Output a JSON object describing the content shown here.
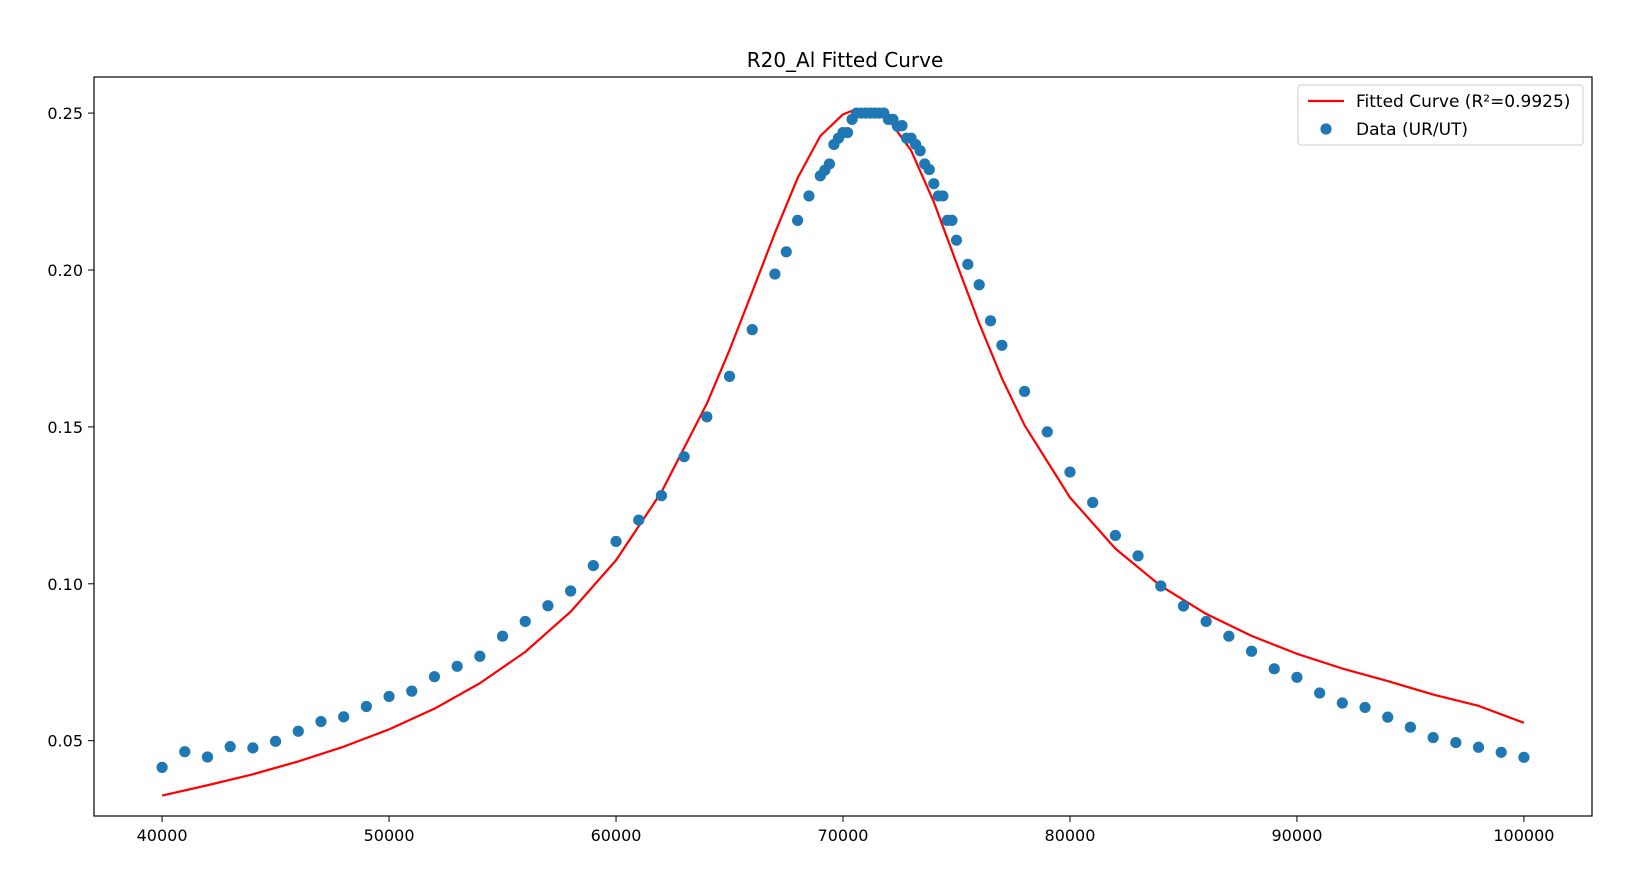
{
  "chart_data": {
    "type": "scatter",
    "title": "R20_Al Fitted Curve",
    "xlabel": "",
    "ylabel": "",
    "xlim": [
      37000,
      103000
    ],
    "ylim": [
      0.026,
      0.2615
    ],
    "x_ticks": [
      40000,
      50000,
      60000,
      70000,
      80000,
      90000,
      100000
    ],
    "y_ticks": [
      0.05,
      0.1,
      0.15,
      0.2,
      0.25
    ],
    "x_tick_labels": [
      "40000",
      "50000",
      "60000",
      "70000",
      "80000",
      "90000",
      "100000"
    ],
    "y_tick_labels": [
      "0.05",
      "0.10",
      "0.15",
      "0.20",
      "0.25"
    ],
    "grid": false,
    "legend_position": "top-right",
    "series": [
      {
        "name": "Fitted Curve (R²=0.9925)",
        "kind": "line",
        "color": "#ff0000",
        "x": [
          40000,
          42000,
          44000,
          46000,
          48000,
          50000,
          52000,
          54000,
          56000,
          58000,
          60000,
          62000,
          64000,
          65000,
          66000,
          67000,
          68000,
          69000,
          70000,
          70500,
          71000,
          71500,
          72000,
          73000,
          74000,
          75000,
          76000,
          77000,
          78000,
          80000,
          82000,
          84000,
          86000,
          88000,
          90000,
          92000,
          94000,
          96000,
          98000,
          100000
        ],
        "y": [
          0.0325,
          0.0358,
          0.0393,
          0.0434,
          0.0481,
          0.0536,
          0.0602,
          0.0683,
          0.0783,
          0.0911,
          0.1075,
          0.1292,
          0.1574,
          0.1745,
          0.193,
          0.2118,
          0.2293,
          0.2427,
          0.2496,
          0.251,
          0.2513,
          0.2505,
          0.248,
          0.2381,
          0.2217,
          0.2022,
          0.183,
          0.1655,
          0.1505,
          0.1275,
          0.1112,
          0.0993,
          0.0904,
          0.0834,
          0.0777,
          0.073,
          0.069,
          0.0647,
          0.0611,
          0.0557
        ]
      },
      {
        "name": "Data (UR/UT)",
        "kind": "scatter",
        "color": "#1f77b4",
        "x": [
          40000,
          41000,
          42000,
          43000,
          44000,
          45000,
          46000,
          47000,
          48000,
          49000,
          50000,
          51000,
          52000,
          53000,
          54000,
          55000,
          56000,
          57000,
          58000,
          59000,
          60000,
          61000,
          62000,
          63000,
          64000,
          65000,
          66000,
          67000,
          67500,
          68000,
          68500,
          69000,
          69200,
          69400,
          69600,
          69800,
          70000,
          70200,
          70400,
          70600,
          70800,
          71000,
          71200,
          71400,
          71600,
          71800,
          72000,
          72200,
          72400,
          72600,
          72800,
          73000,
          73200,
          73400,
          73600,
          73800,
          74000,
          74200,
          74400,
          74600,
          74800,
          75000,
          75500,
          76000,
          76500,
          77000,
          78000,
          79000,
          80000,
          81000,
          82000,
          83000,
          84000,
          85000,
          86000,
          87000,
          88000,
          89000,
          90000,
          91000,
          92000,
          93000,
          94000,
          95000,
          96000,
          97000,
          98000,
          99000,
          100000
        ],
        "y": [
          0.0415,
          0.0465,
          0.0448,
          0.0481,
          0.0477,
          0.0498,
          0.053,
          0.0561,
          0.0576,
          0.0609,
          0.0641,
          0.0658,
          0.0704,
          0.0737,
          0.0769,
          0.0833,
          0.088,
          0.093,
          0.0977,
          0.1058,
          0.1135,
          0.1203,
          0.1281,
          0.1405,
          0.1532,
          0.1661,
          0.181,
          0.1987,
          0.2058,
          0.2158,
          0.2236,
          0.23,
          0.2318,
          0.2338,
          0.24,
          0.242,
          0.2438,
          0.2438,
          0.248,
          0.25,
          0.25,
          0.25,
          0.25,
          0.25,
          0.25,
          0.25,
          0.248,
          0.248,
          0.2458,
          0.246,
          0.242,
          0.242,
          0.24,
          0.238,
          0.2338,
          0.232,
          0.2275,
          0.2236,
          0.2236,
          0.2158,
          0.2158,
          0.2095,
          0.2018,
          0.1953,
          0.1838,
          0.176,
          0.1613,
          0.1484,
          0.1356,
          0.1259,
          0.1154,
          0.1089,
          0.0993,
          0.0929,
          0.088,
          0.0833,
          0.0785,
          0.0729,
          0.0702,
          0.0652,
          0.062,
          0.0606,
          0.0575,
          0.0543,
          0.051,
          0.0494,
          0.0479,
          0.0463,
          0.0447
        ]
      }
    ]
  }
}
